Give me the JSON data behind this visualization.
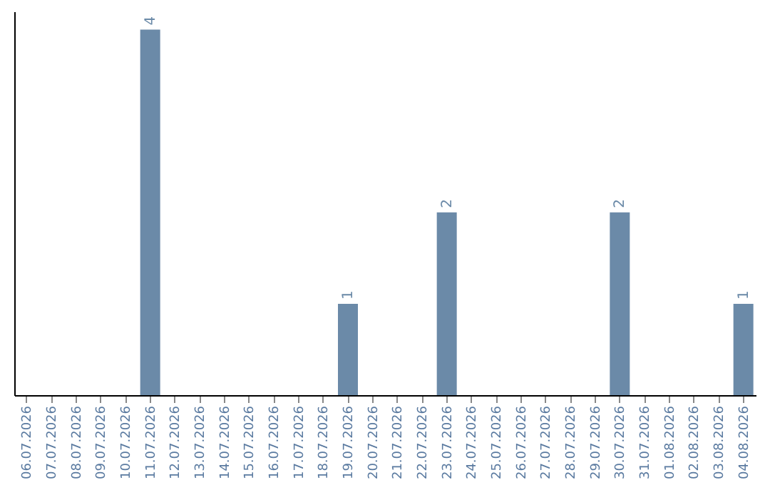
{
  "chart_data": {
    "type": "bar",
    "categories": [
      "06.07.2026",
      "07.07.2026",
      "08.07.2026",
      "09.07.2026",
      "10.07.2026",
      "11.07.2026",
      "12.07.2026",
      "13.07.2026",
      "14.07.2026",
      "15.07.2026",
      "16.07.2026",
      "17.07.2026",
      "18.07.2026",
      "19.07.2026",
      "20.07.2026",
      "21.07.2026",
      "22.07.2026",
      "23.07.2026",
      "24.07.2026",
      "25.07.2026",
      "26.07.2026",
      "27.07.2026",
      "28.07.2026",
      "29.07.2026",
      "30.07.2026",
      "31.07.2026",
      "01.08.2026",
      "02.08.2026",
      "03.08.2026",
      "04.08.2026"
    ],
    "values": [
      0,
      0,
      0,
      0,
      0,
      4,
      0,
      0,
      0,
      0,
      0,
      0,
      0,
      1,
      0,
      0,
      0,
      2,
      0,
      0,
      0,
      0,
      0,
      0,
      2,
      0,
      0,
      0,
      0,
      1
    ],
    "color": "#6b8aa8",
    "ylim": [
      0,
      4.2
    ],
    "value_labels": [
      null,
      null,
      null,
      null,
      null,
      "4",
      null,
      null,
      null,
      null,
      null,
      null,
      null,
      "1",
      null,
      null,
      null,
      "2",
      null,
      null,
      null,
      null,
      null,
      null,
      "2",
      null,
      null,
      null,
      null,
      "1"
    ],
    "grid": false
  }
}
